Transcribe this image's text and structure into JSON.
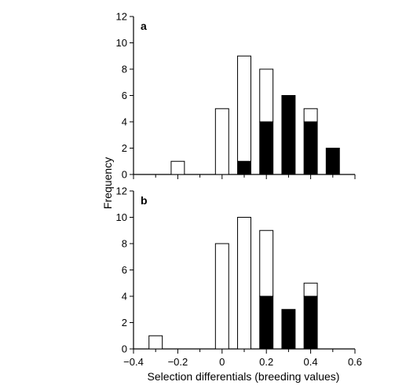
{
  "colors": {
    "background": "#ffffff",
    "bar_stroke": "#000000",
    "open_bar_fill": "#ffffff",
    "filled_bar_fill": "#000000"
  },
  "chart_data": [
    {
      "type": "bar",
      "stacked": true,
      "panel_label": "a",
      "ylabel": "Frequency",
      "xlabel": "",
      "ylim": [
        0,
        12
      ],
      "xlim": [
        -0.4,
        0.6
      ],
      "yticks": [
        "0",
        "2",
        "4",
        "6",
        "8",
        "10",
        "12"
      ],
      "x": [
        -0.2,
        0.0,
        0.1,
        0.2,
        0.3,
        0.4,
        0.5
      ],
      "series": [
        {
          "fill": "filled",
          "values": [
            0,
            0,
            1,
            4,
            6,
            4,
            2
          ]
        },
        {
          "fill": "open",
          "values": [
            1,
            5,
            8,
            4,
            0,
            1,
            0
          ]
        }
      ]
    },
    {
      "type": "bar",
      "stacked": true,
      "panel_label": "b",
      "ylabel": "",
      "xlabel": "Selection differentials (breeding values)",
      "ylim": [
        0,
        12
      ],
      "xlim": [
        -0.4,
        0.6
      ],
      "yticks": [
        "0",
        "2",
        "4",
        "6",
        "8",
        "10",
        "12"
      ],
      "xticks": [
        "−0.4",
        "−0.2",
        "0",
        "0.2",
        "0.4",
        "0.6"
      ],
      "x": [
        -0.3,
        0.0,
        0.1,
        0.2,
        0.3,
        0.4
      ],
      "series": [
        {
          "fill": "filled",
          "values": [
            0,
            0,
            0,
            4,
            3,
            4
          ]
        },
        {
          "fill": "open",
          "values": [
            1,
            8,
            10,
            5,
            0,
            1
          ]
        }
      ]
    }
  ]
}
